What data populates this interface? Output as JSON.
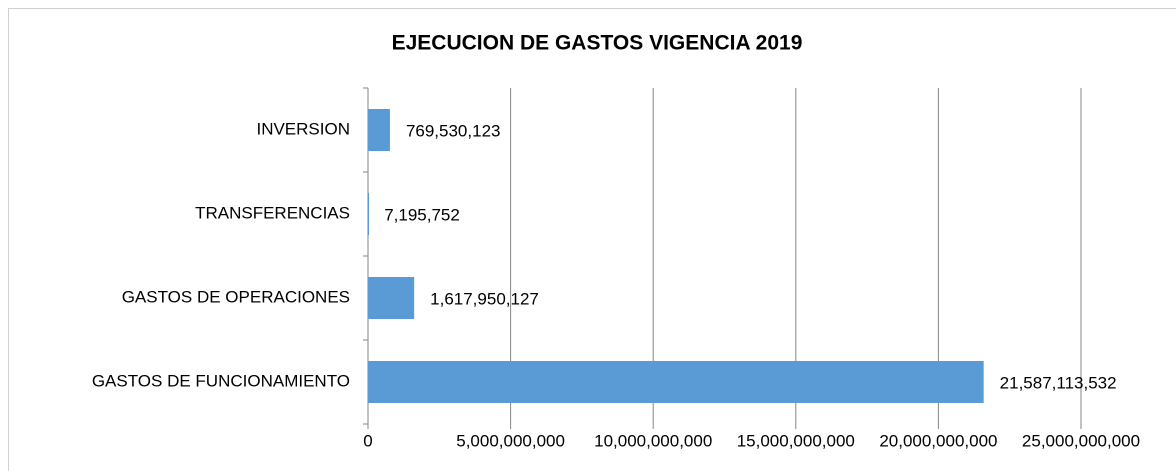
{
  "chart_data": {
    "type": "bar",
    "orientation": "horizontal",
    "title": "EJECUCION DE GASTOS VIGENCIA 2019",
    "categories": [
      "INVERSION",
      "TRANSFERENCIAS",
      "GASTOS DE OPERACIONES",
      "GASTOS DE FUNCIONAMIENTO"
    ],
    "values": [
      769530123,
      7195752,
      1617950127,
      21587113532
    ],
    "value_labels": [
      "769,530,123",
      "7,195,752",
      "1,617,950,127",
      "21,587,113,532"
    ],
    "color": "#5b9bd5",
    "xlim": [
      0,
      25000000000
    ],
    "xticks": [
      0,
      {
        "value": 5000000000,
        "label": "5,000,000,000"
      },
      {
        "value": 10000000000,
        "label": "10,000,000,000"
      },
      {
        "value": 15000000000,
        "label": "15,000,000,000"
      },
      {
        "value": 20000000000,
        "label": "20,000,000,000"
      },
      {
        "value": 25000000000,
        "label": "25,000,000,000"
      }
    ],
    "grid": true
  }
}
